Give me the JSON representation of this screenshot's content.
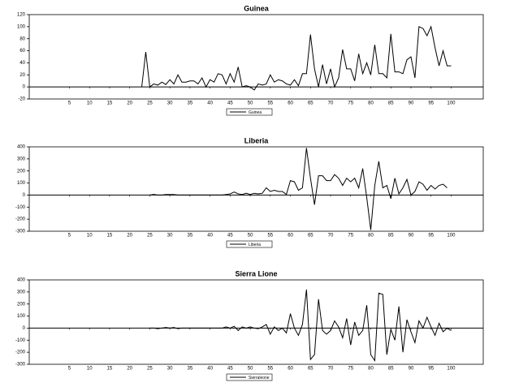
{
  "chart_data": [
    {
      "type": "line",
      "title": "Guinea",
      "x": [
        23,
        24,
        25,
        26,
        27,
        28,
        29,
        30,
        31,
        32,
        33,
        34,
        35,
        36,
        37,
        38,
        39,
        40,
        41,
        42,
        43,
        44,
        45,
        46,
        47,
        48,
        49,
        50,
        51,
        52,
        53,
        54,
        55,
        56,
        57,
        58,
        59,
        60,
        61,
        62,
        63,
        64,
        65,
        66,
        67,
        68,
        69,
        70,
        71,
        72,
        73,
        74,
        75,
        76,
        77,
        78,
        79,
        80,
        81,
        82,
        83,
        84,
        85,
        86,
        87,
        88,
        89,
        90,
        91,
        92,
        93,
        94,
        95,
        96,
        97,
        98,
        99,
        100
      ],
      "series": [
        {
          "name": "Guinea",
          "color": "#000000",
          "values": [
            0,
            58,
            0,
            5,
            3,
            8,
            4,
            12,
            5,
            20,
            8,
            8,
            10,
            10,
            5,
            15,
            0,
            12,
            8,
            22,
            20,
            5,
            22,
            8,
            33,
            0,
            2,
            0,
            -5,
            5,
            3,
            5,
            20,
            8,
            12,
            10,
            5,
            3,
            12,
            2,
            22,
            22,
            87,
            30,
            0,
            37,
            5,
            30,
            0,
            15,
            62,
            30,
            30,
            10,
            55,
            22,
            40,
            20,
            70,
            22,
            22,
            15,
            88,
            25,
            25,
            22,
            45,
            50,
            15,
            100,
            97,
            85,
            100,
            65,
            35,
            60,
            35,
            35
          ]
        }
      ],
      "xlim": [
        -5,
        108
      ],
      "xticks": [
        5,
        10,
        15,
        20,
        25,
        30,
        35,
        40,
        45,
        50,
        55,
        60,
        65,
        70,
        75,
        80,
        85,
        90,
        95,
        100
      ],
      "ylim": [
        -20,
        120
      ],
      "yticks": [
        -20,
        0,
        20,
        40,
        60,
        80,
        100,
        120
      ]
    },
    {
      "type": "line",
      "title": "Liberia",
      "x": [
        25,
        26,
        27,
        28,
        29,
        30,
        31,
        32,
        33,
        34,
        35,
        36,
        37,
        38,
        39,
        40,
        41,
        42,
        43,
        44,
        45,
        46,
        47,
        48,
        49,
        50,
        51,
        52,
        53,
        54,
        55,
        56,
        57,
        58,
        59,
        60,
        61,
        62,
        63,
        64,
        65,
        66,
        67,
        68,
        69,
        70,
        71,
        72,
        73,
        74,
        75,
        76,
        77,
        78,
        79,
        80,
        81,
        82,
        83,
        84,
        85,
        86,
        87,
        88,
        89,
        90,
        91,
        92,
        93,
        94,
        95,
        96,
        97,
        98,
        99
      ],
      "series": [
        {
          "name": "Liberia",
          "color": "#000000",
          "values": [
            0,
            5,
            0,
            0,
            5,
            5,
            5,
            0,
            0,
            0,
            0,
            0,
            0,
            0,
            0,
            0,
            0,
            0,
            0,
            5,
            10,
            25,
            10,
            5,
            15,
            5,
            15,
            10,
            15,
            60,
            30,
            40,
            30,
            30,
            5,
            120,
            110,
            40,
            60,
            390,
            140,
            -80,
            160,
            160,
            120,
            120,
            170,
            140,
            80,
            140,
            110,
            140,
            60,
            220,
            -20,
            -290,
            80,
            280,
            60,
            80,
            -30,
            140,
            10,
            60,
            130,
            0,
            30,
            110,
            90,
            40,
            80,
            50,
            80,
            90,
            60
          ]
        }
      ],
      "xlim": [
        -5,
        108
      ],
      "xticks": [
        5,
        10,
        15,
        20,
        25,
        30,
        35,
        40,
        45,
        50,
        55,
        60,
        65,
        70,
        75,
        80,
        85,
        90,
        95,
        100
      ],
      "ylim": [
        -300,
        400
      ],
      "yticks": [
        -300,
        -200,
        -100,
        0,
        100,
        200,
        300,
        400
      ]
    },
    {
      "type": "line",
      "title": "Sierra Lione",
      "x": [
        25,
        26,
        27,
        28,
        29,
        30,
        31,
        32,
        33,
        34,
        35,
        36,
        37,
        38,
        39,
        40,
        41,
        42,
        43,
        44,
        45,
        46,
        47,
        48,
        49,
        50,
        51,
        52,
        53,
        54,
        55,
        56,
        57,
        58,
        59,
        60,
        61,
        62,
        63,
        64,
        65,
        66,
        67,
        68,
        69,
        70,
        71,
        72,
        73,
        74,
        75,
        76,
        77,
        78,
        79,
        80,
        81,
        82,
        83,
        84,
        85,
        86,
        87,
        88,
        89,
        90,
        91,
        92,
        93,
        94,
        95,
        96,
        97,
        98,
        99,
        100
      ],
      "series": [
        {
          "name": "Sierraleone",
          "color": "#000000",
          "values": [
            0,
            0,
            -5,
            0,
            5,
            0,
            5,
            -5,
            0,
            0,
            0,
            0,
            0,
            0,
            0,
            0,
            0,
            0,
            0,
            10,
            0,
            15,
            -20,
            10,
            0,
            10,
            0,
            -5,
            10,
            30,
            -50,
            10,
            -20,
            0,
            -40,
            120,
            0,
            -60,
            30,
            320,
            -260,
            -220,
            240,
            -20,
            -50,
            -20,
            60,
            10,
            -80,
            80,
            -140,
            50,
            -60,
            -20,
            190,
            -220,
            -270,
            290,
            280,
            -220,
            -10,
            -100,
            180,
            -200,
            70,
            -30,
            -120,
            60,
            0,
            90,
            10,
            -60,
            40,
            -30,
            0,
            -20
          ]
        }
      ],
      "xlim": [
        -5,
        108
      ],
      "xticks": [
        5,
        10,
        15,
        20,
        25,
        30,
        35,
        40,
        45,
        50,
        55,
        60,
        65,
        70,
        75,
        80,
        85,
        90,
        95,
        100
      ],
      "ylim": [
        -300,
        400
      ],
      "yticks": [
        -300,
        -200,
        -100,
        0,
        100,
        200,
        300,
        400
      ]
    }
  ]
}
